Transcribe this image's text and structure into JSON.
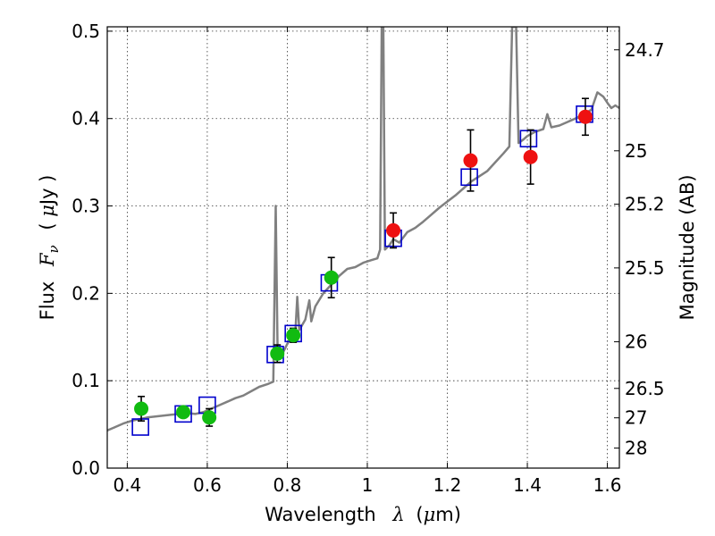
{
  "chart_data": {
    "type": "scatter",
    "xlabel_text": "Wavelength",
    "xlabel_symbol": "λ",
    "xlabel_unit_open": "(",
    "xlabel_unit_mu": "μ",
    "xlabel_unit_rest": "m)",
    "ylabel_text": "Flux",
    "ylabel_symbol": "F",
    "ylabel_subscript": "ν",
    "ylabel_unit_open": "( ",
    "ylabel_unit_mu": "μ",
    "ylabel_unit_rest": "Jy )",
    "y2label": "Magnitude (AB)",
    "xlim": [
      0.35,
      1.63
    ],
    "ylim": [
      0.0,
      0.505
    ],
    "xticks": [
      0.4,
      0.6,
      0.8,
      1.0,
      1.2,
      1.4,
      1.6
    ],
    "xtick_labels": [
      "0.4",
      "0.6",
      "0.8",
      "1",
      "1.2",
      "1.4",
      "1.6"
    ],
    "yticks": [
      0.0,
      0.1,
      0.2,
      0.3,
      0.4,
      0.5
    ],
    "ytick_labels": [
      "0.0",
      "0.1",
      "0.2",
      "0.3",
      "0.4",
      "0.5"
    ],
    "mag_ticks": [
      24.7,
      25,
      25.2,
      25.5,
      26,
      26.5,
      27,
      28
    ],
    "mag_tick_labels": [
      "24.7",
      "25",
      "25.2",
      "25.5",
      "26",
      "26.5",
      "27",
      "28"
    ],
    "grid": true,
    "colors": {
      "model": "#808080",
      "green": "#11bb11",
      "red": "#ee1111",
      "square": "#0000cc",
      "error": "#000000"
    },
    "series": [
      {
        "name": "model spectrum",
        "kind": "line",
        "points": [
          [
            0.35,
            0.043
          ],
          [
            0.37,
            0.047
          ],
          [
            0.39,
            0.051
          ],
          [
            0.41,
            0.054
          ],
          [
            0.43,
            0.056
          ],
          [
            0.45,
            0.058
          ],
          [
            0.47,
            0.059
          ],
          [
            0.49,
            0.06
          ],
          [
            0.51,
            0.061
          ],
          [
            0.53,
            0.062
          ],
          [
            0.55,
            0.063
          ],
          [
            0.57,
            0.062
          ],
          [
            0.59,
            0.064
          ],
          [
            0.61,
            0.068
          ],
          [
            0.63,
            0.072
          ],
          [
            0.65,
            0.076
          ],
          [
            0.67,
            0.08
          ],
          [
            0.69,
            0.083
          ],
          [
            0.71,
            0.088
          ],
          [
            0.73,
            0.093
          ],
          [
            0.75,
            0.096
          ],
          [
            0.765,
            0.099
          ],
          [
            0.771,
            0.3
          ],
          [
            0.776,
            0.125
          ],
          [
            0.79,
            0.133
          ],
          [
            0.8,
            0.142
          ],
          [
            0.81,
            0.15
          ],
          [
            0.82,
            0.154
          ],
          [
            0.825,
            0.196
          ],
          [
            0.83,
            0.158
          ],
          [
            0.845,
            0.17
          ],
          [
            0.855,
            0.192
          ],
          [
            0.86,
            0.168
          ],
          [
            0.87,
            0.185
          ],
          [
            0.89,
            0.2
          ],
          [
            0.91,
            0.21
          ],
          [
            0.93,
            0.22
          ],
          [
            0.95,
            0.228
          ],
          [
            0.97,
            0.23
          ],
          [
            0.99,
            0.235
          ],
          [
            1.01,
            0.238
          ],
          [
            1.025,
            0.24
          ],
          [
            1.032,
            0.25
          ],
          [
            1.036,
            0.505
          ],
          [
            1.04,
            0.505
          ],
          [
            1.044,
            0.25
          ],
          [
            1.055,
            0.255
          ],
          [
            1.065,
            0.262
          ],
          [
            1.08,
            0.258
          ],
          [
            1.1,
            0.27
          ],
          [
            1.12,
            0.275
          ],
          [
            1.14,
            0.282
          ],
          [
            1.16,
            0.29
          ],
          [
            1.18,
            0.298
          ],
          [
            1.2,
            0.305
          ],
          [
            1.22,
            0.312
          ],
          [
            1.24,
            0.32
          ],
          [
            1.26,
            0.328
          ],
          [
            1.28,
            0.334
          ],
          [
            1.3,
            0.34
          ],
          [
            1.32,
            0.35
          ],
          [
            1.34,
            0.36
          ],
          [
            1.355,
            0.368
          ],
          [
            1.362,
            0.505
          ],
          [
            1.372,
            0.505
          ],
          [
            1.378,
            0.372
          ],
          [
            1.39,
            0.376
          ],
          [
            1.4,
            0.38
          ],
          [
            1.42,
            0.385
          ],
          [
            1.44,
            0.388
          ],
          [
            1.45,
            0.405
          ],
          [
            1.46,
            0.39
          ],
          [
            1.48,
            0.392
          ],
          [
            1.5,
            0.396
          ],
          [
            1.52,
            0.4
          ],
          [
            1.54,
            0.405
          ],
          [
            1.56,
            0.41
          ],
          [
            1.575,
            0.43
          ],
          [
            1.59,
            0.425
          ],
          [
            1.6,
            0.418
          ],
          [
            1.61,
            0.412
          ],
          [
            1.62,
            0.415
          ],
          [
            1.63,
            0.412
          ]
        ]
      },
      {
        "name": "photometry (green)",
        "kind": "scatter",
        "marker": "circle",
        "color": "#11bb11",
        "points": [
          {
            "x": 0.435,
            "y": 0.068,
            "err": 0.014
          },
          {
            "x": 0.54,
            "y": 0.064,
            "err": 0.006
          },
          {
            "x": 0.605,
            "y": 0.058,
            "err": 0.01
          },
          {
            "x": 0.775,
            "y": 0.131,
            "err": 0.01
          },
          {
            "x": 0.815,
            "y": 0.152,
            "err": 0.008
          },
          {
            "x": 0.91,
            "y": 0.218,
            "err": 0.023
          }
        ]
      },
      {
        "name": "photometry (red)",
        "kind": "scatter",
        "marker": "circle",
        "color": "#ee1111",
        "points": [
          {
            "x": 1.065,
            "y": 0.272,
            "err": 0.02
          },
          {
            "x": 1.258,
            "y": 0.352,
            "err": 0.035
          },
          {
            "x": 1.408,
            "y": 0.356,
            "err": 0.031
          },
          {
            "x": 1.545,
            "y": 0.402,
            "err": 0.021
          }
        ]
      },
      {
        "name": "model photometry",
        "kind": "scatter",
        "marker": "square",
        "color": "#0000cc",
        "points": [
          {
            "x": 0.433,
            "y": 0.047
          },
          {
            "x": 0.54,
            "y": 0.062
          },
          {
            "x": 0.6,
            "y": 0.072
          },
          {
            "x": 0.77,
            "y": 0.13
          },
          {
            "x": 0.815,
            "y": 0.154
          },
          {
            "x": 0.905,
            "y": 0.212
          },
          {
            "x": 1.065,
            "y": 0.263
          },
          {
            "x": 1.255,
            "y": 0.333
          },
          {
            "x": 1.403,
            "y": 0.377
          },
          {
            "x": 1.543,
            "y": 0.405
          }
        ]
      }
    ]
  }
}
